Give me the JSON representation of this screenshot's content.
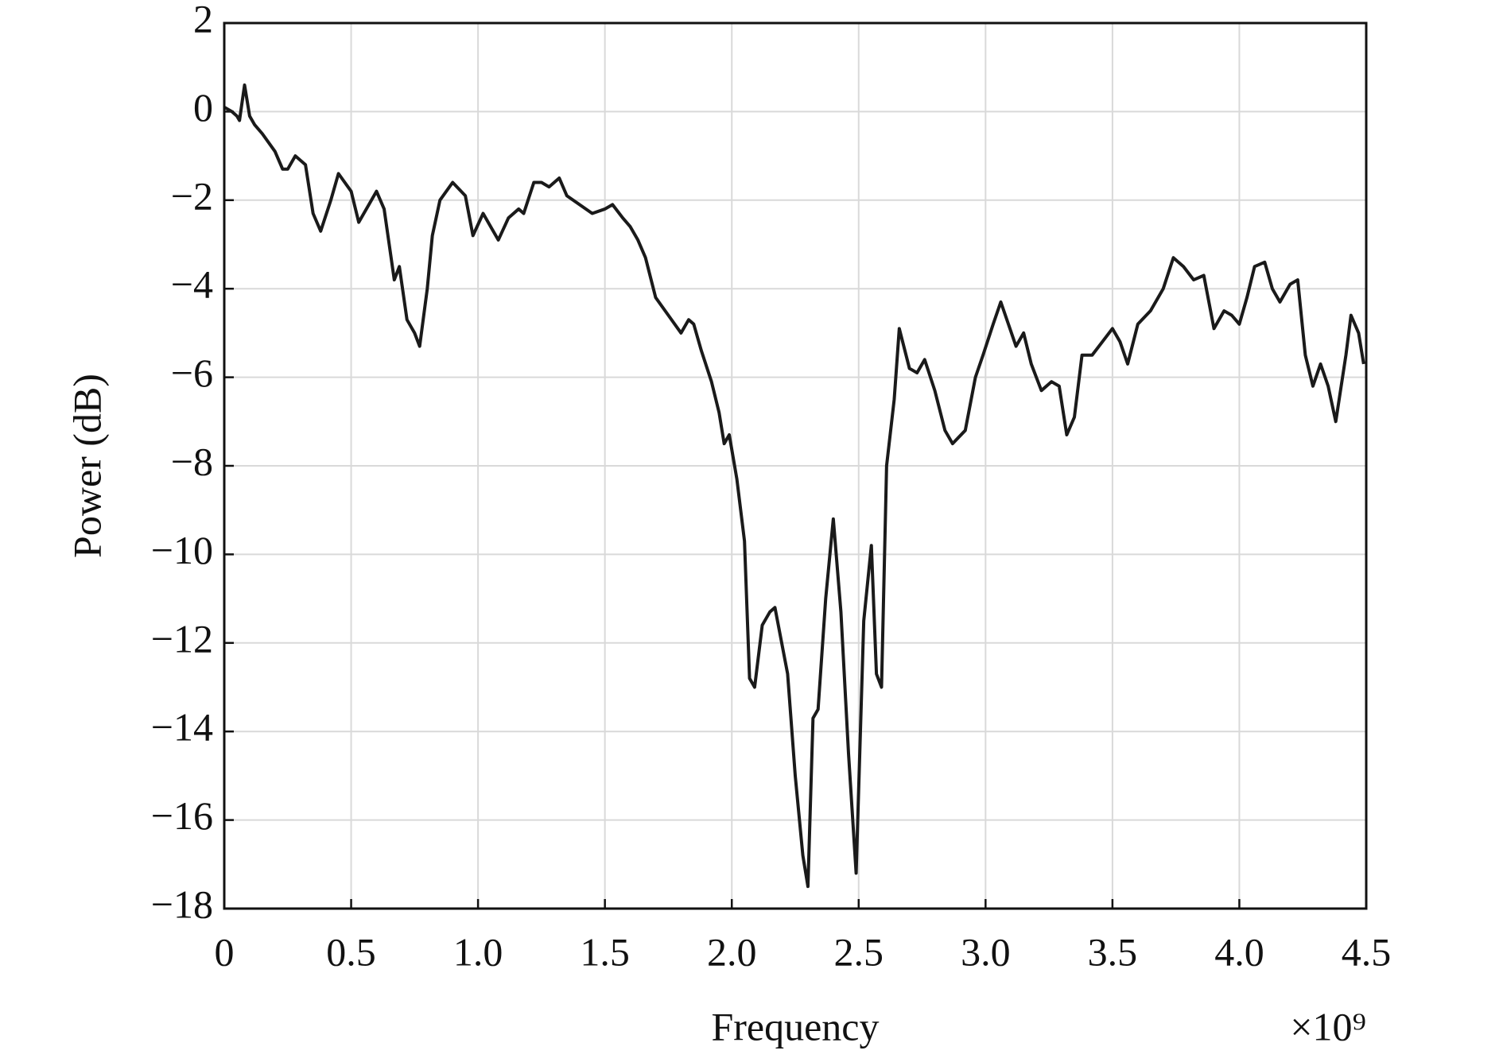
{
  "chart_data": {
    "type": "line",
    "x_label": "Frequency",
    "y_label": "Power (dB)",
    "x_multiplier": "×10⁹",
    "xlim": [
      0,
      4.5
    ],
    "ylim": [
      -18,
      2
    ],
    "xticks": [
      0,
      0.5,
      {
        "value": 1,
        "label": "1.0"
      },
      1.5,
      {
        "value": 2,
        "label": "2.0"
      },
      2.5,
      {
        "value": 3,
        "label": "3.0"
      },
      3.5,
      {
        "value": 4,
        "label": "4.0"
      },
      4.5
    ],
    "yticks": [
      {
        "value": -18,
        "label": "−18"
      },
      {
        "value": -16,
        "label": "−16"
      },
      {
        "value": -14,
        "label": "−14"
      },
      {
        "value": -12,
        "label": "−12"
      },
      {
        "value": -10,
        "label": "−10"
      },
      {
        "value": -8,
        "label": "−8"
      },
      {
        "value": -6,
        "label": "−6"
      },
      {
        "value": -4,
        "label": "−4"
      },
      {
        "value": -2,
        "label": "−2"
      },
      0,
      2
    ],
    "grid": true,
    "x": [
      0,
      0.03,
      0.05,
      0.06,
      0.08,
      0.1,
      0.12,
      0.15,
      0.2,
      0.23,
      0.25,
      0.28,
      0.32,
      0.35,
      0.38,
      0.42,
      0.45,
      0.5,
      0.53,
      0.57,
      0.6,
      0.63,
      0.65,
      0.67,
      0.69,
      0.72,
      0.75,
      0.77,
      0.8,
      0.82,
      0.85,
      0.9,
      0.95,
      0.98,
      1.02,
      1.05,
      1.08,
      1.12,
      1.16,
      1.18,
      1.22,
      1.25,
      1.28,
      1.32,
      1.35,
      1.4,
      1.45,
      1.5,
      1.53,
      1.57,
      1.6,
      1.63,
      1.66,
      1.7,
      1.75,
      1.8,
      1.83,
      1.85,
      1.88,
      1.92,
      1.95,
      1.97,
      1.99,
      2.02,
      2.05,
      2.07,
      2.09,
      2.12,
      2.15,
      2.17,
      2.22,
      2.25,
      2.28,
      2.3,
      2.32,
      2.34,
      2.37,
      2.4,
      2.43,
      2.46,
      2.49,
      2.52,
      2.55,
      2.57,
      2.59,
      2.61,
      2.64,
      2.66,
      2.7,
      2.73,
      2.76,
      2.8,
      2.84,
      2.87,
      2.92,
      2.96,
      2.99,
      3.03,
      3.06,
      3.09,
      3.12,
      3.15,
      3.18,
      3.22,
      3.26,
      3.29,
      3.32,
      3.35,
      3.38,
      3.42,
      3.46,
      3.5,
      3.53,
      3.56,
      3.6,
      3.65,
      3.7,
      3.74,
      3.78,
      3.82,
      3.86,
      3.9,
      3.94,
      3.97,
      4.0,
      4.03,
      4.06,
      4.1,
      4.13,
      4.16,
      4.2,
      4.23,
      4.26,
      4.29,
      4.32,
      4.35,
      4.38,
      4.42,
      4.44,
      4.47,
      4.49
    ],
    "series": [
      {
        "color": "#1a1a1a",
        "values": [
          0.1,
          0,
          -0.1,
          -0.2,
          0.6,
          -0.1,
          -0.3,
          -0.5,
          -0.9,
          -1.3,
          -1.3,
          -1.0,
          -1.2,
          -2.3,
          -2.7,
          -2.0,
          -1.4,
          -1.8,
          -2.5,
          -2.1,
          -1.8,
          -2.2,
          -3.0,
          -3.8,
          -3.5,
          -4.7,
          -5.0,
          -5.3,
          -4.0,
          -2.8,
          -2.0,
          -1.6,
          -1.9,
          -2.8,
          -2.3,
          -2.6,
          -2.9,
          -2.4,
          -2.2,
          -2.3,
          -1.6,
          -1.6,
          -1.7,
          -1.5,
          -1.9,
          -2.1,
          -2.3,
          -2.2,
          -2.1,
          -2.4,
          -2.6,
          -2.9,
          -3.3,
          -4.2,
          -4.6,
          -5.0,
          -4.7,
          -4.8,
          -5.4,
          -6.1,
          -6.8,
          -7.5,
          -7.3,
          -8.3,
          -9.7,
          -12.8,
          -13.0,
          -11.6,
          -11.3,
          -11.2,
          -12.7,
          -15.0,
          -16.8,
          -17.5,
          -13.7,
          -13.5,
          -11.0,
          -9.2,
          -11.3,
          -14.5,
          -17.2,
          -11.5,
          -9.8,
          -12.7,
          -13.0,
          -8.0,
          -6.5,
          -4.9,
          -5.8,
          -5.9,
          -5.6,
          -6.3,
          -7.2,
          -7.5,
          -7.2,
          -6.0,
          -5.5,
          -4.8,
          -4.3,
          -4.8,
          -5.3,
          -5.0,
          -5.7,
          -6.3,
          -6.1,
          -6.2,
          -7.3,
          -6.9,
          -5.5,
          -5.5,
          -5.2,
          -4.9,
          -5.2,
          -5.7,
          -4.8,
          -4.5,
          -4.0,
          -3.3,
          -3.5,
          -3.8,
          -3.7,
          -4.9,
          -4.5,
          -4.6,
          -4.8,
          -4.2,
          -3.5,
          -3.4,
          -4.0,
          -4.3,
          -3.9,
          -3.8,
          -5.5,
          -6.2,
          -5.7,
          -6.2,
          -7.0,
          -5.5,
          -4.6,
          -5.0,
          -5.7
        ]
      }
    ]
  }
}
